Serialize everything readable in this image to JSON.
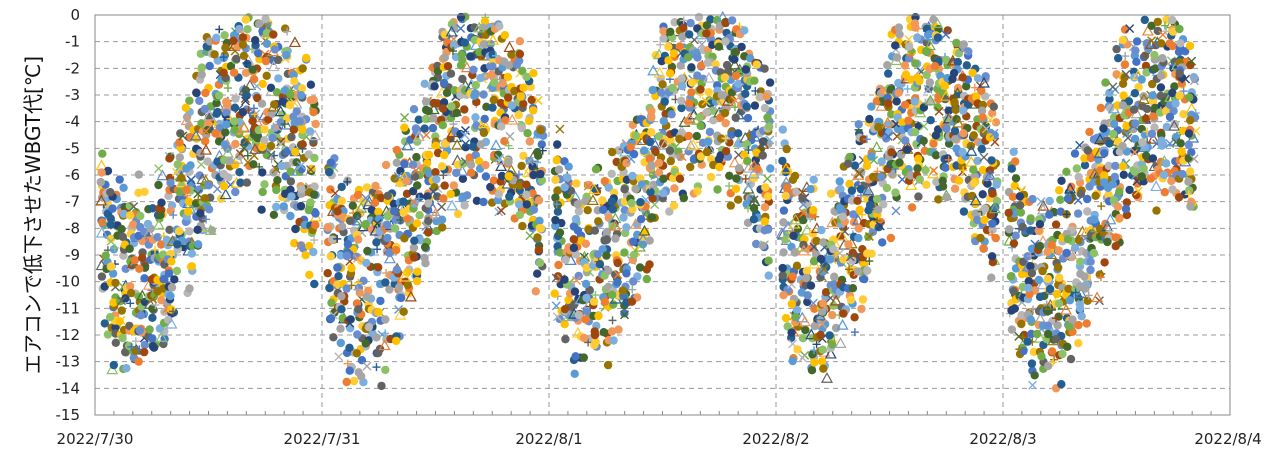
{
  "chart_data": {
    "type": "scatter",
    "title": "",
    "xlabel": "",
    "ylabel": "エアコンで低下させたWBGT代[℃]",
    "xlim": [
      "2022/7/30",
      "2022/8/4"
    ],
    "ylim": [
      -15,
      0
    ],
    "x_tick_labels": [
      "2022/7/30",
      "2022/7/31",
      "2022/8/1",
      "2022/8/2",
      "2022/8/3",
      "2022/8/4"
    ],
    "y_tick_labels": [
      "0",
      "-1",
      "-2",
      "-3",
      "-4",
      "-5",
      "-6",
      "-7",
      "-8",
      "-9",
      "-10",
      "-11",
      "-12",
      "-13",
      "-14",
      "-15"
    ],
    "grid": {
      "horizontal": true,
      "vertical": true,
      "style": "dashed"
    },
    "legend": "none",
    "marker_colors": [
      "#4472C4",
      "#ED7D31",
      "#A5A5A5",
      "#FFC000",
      "#5B9BD5",
      "#70AD47",
      "#264478",
      "#9E480E",
      "#636363",
      "#997300",
      "#255E91",
      "#43682B",
      "#698ED0",
      "#F1975A",
      "#B7B7B7",
      "#FFCD33",
      "#7CAFDD",
      "#8CC168"
    ],
    "series_summary": {
      "description_note": "",
      "daily_profile_hours": [
        0,
        2,
        4,
        6,
        8,
        10,
        12,
        14,
        16,
        18,
        20,
        22
      ],
      "daily_profile_center": [
        -7.2,
        -9.6,
        -10.2,
        -10.0,
        -8.6,
        -6.8,
        -4.6,
        -3.6,
        -3.2,
        -3.4,
        -4.2,
        -5.6
      ],
      "day_start_values": [
        "2022/7/30",
        "2022/7/31",
        "2022/8/1",
        "2022/8/2",
        "2022/8/3"
      ],
      "typical_spread": 4.2
    }
  }
}
